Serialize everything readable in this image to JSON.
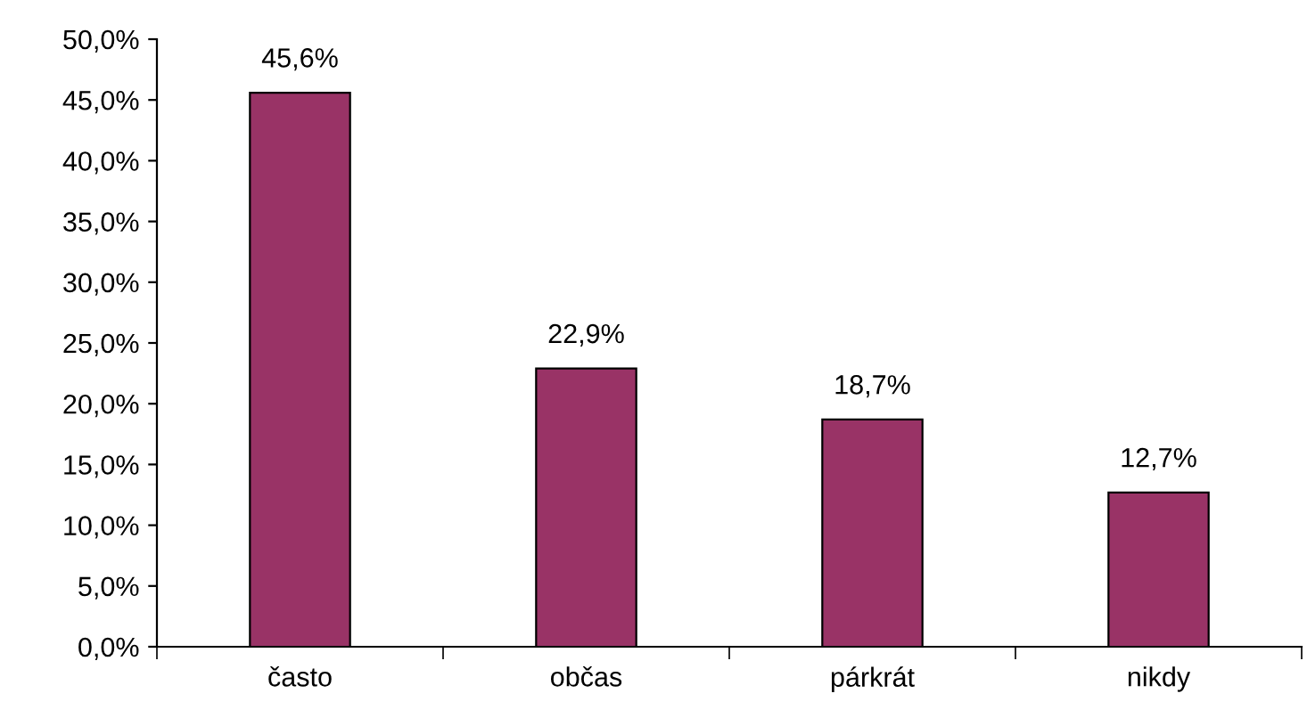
{
  "chart_data": {
    "type": "bar",
    "categories": [
      "často",
      "občas",
      "párkrát",
      "nikdy"
    ],
    "values": [
      45.6,
      22.9,
      18.7,
      12.7
    ],
    "color": "#993366",
    "value_labels": [
      "45,6%",
      "22,9%",
      "18,7%",
      "12,7%"
    ],
    "ylim": [
      0,
      50
    ],
    "yticks": [
      {
        "value": 0,
        "label": "0,0%"
      },
      {
        "value": 5,
        "label": "5,0%"
      },
      {
        "value": 10,
        "label": "10,0%"
      },
      {
        "value": 15,
        "label": "15,0%"
      },
      {
        "value": 20,
        "label": "20,0%"
      },
      {
        "value": 25,
        "label": "25,0%"
      },
      {
        "value": 30,
        "label": "30,0%"
      },
      {
        "value": 35,
        "label": "35,0%"
      },
      {
        "value": 40,
        "label": "40,0%"
      },
      {
        "value": 45,
        "label": "45,0%"
      },
      {
        "value": 50,
        "label": "50,0%"
      }
    ],
    "grid": false,
    "legend": false
  }
}
